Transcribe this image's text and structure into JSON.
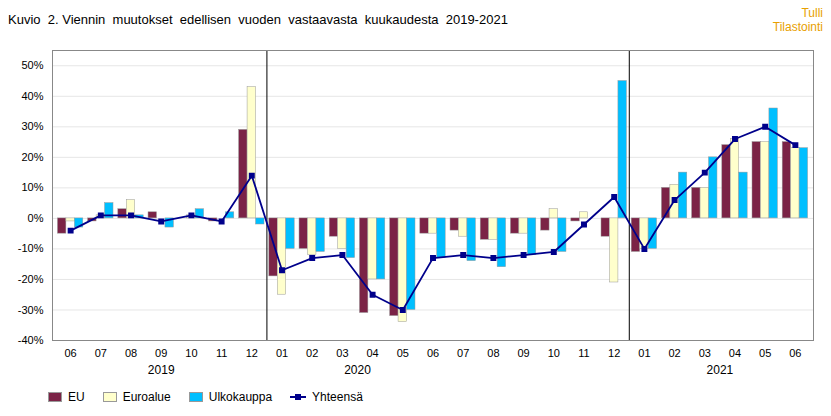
{
  "chart_data": {
    "type": "bar",
    "title": "Kuvio  2. Viennin  muutokset  edellisen  vuoden  vastaavasta  kuukaudesta  2019-2021",
    "categories": [
      "06",
      "07",
      "08",
      "09",
      "10",
      "11",
      "12",
      "01",
      "02",
      "03",
      "04",
      "05",
      "06",
      "07",
      "08",
      "09",
      "10",
      "11",
      "12",
      "01",
      "02",
      "03",
      "04",
      "05",
      "06"
    ],
    "series": [
      {
        "name": "EU",
        "color": "#7b2346",
        "type": "bar",
        "values": [
          -5,
          -1,
          3,
          2,
          0,
          -1,
          29,
          -19,
          -10,
          -6,
          -31,
          -32,
          -5,
          -4,
          -7,
          -5,
          -4,
          -1,
          -6,
          -11,
          10,
          10,
          24,
          25,
          25
        ]
      },
      {
        "name": "Euroalue",
        "color": "#ffffcc",
        "type": "bar",
        "values": [
          -1,
          1,
          6,
          0,
          1,
          0,
          43,
          -25,
          -12,
          -10,
          -20,
          -34,
          -5,
          -6,
          -7,
          -5,
          3,
          2,
          -21,
          -10,
          11,
          10,
          26,
          25,
          23
        ]
      },
      {
        "name": "Ulkokauppa",
        "color": "#00bfff",
        "type": "bar",
        "values": [
          -3,
          5,
          1,
          -3,
          3,
          2,
          -2,
          -10,
          -11,
          -13,
          -20,
          -30,
          -13,
          -14,
          -16,
          -12,
          -11,
          0,
          45,
          -10,
          15,
          20,
          15,
          36,
          23
        ]
      },
      {
        "name": "Yhteensä",
        "color": "#00008b",
        "type": "line",
        "marker": "square",
        "values": [
          -4,
          1,
          1,
          -1,
          1,
          -1,
          14,
          -17,
          -13,
          -12,
          -25,
          -30,
          -13,
          -12,
          -13,
          -12,
          -11,
          -2,
          7,
          -10,
          6,
          15,
          26,
          30,
          24
        ]
      }
    ],
    "ylim": [
      -40,
      55
    ],
    "yticks": [
      {
        "value": -40,
        "label": "-40%"
      },
      {
        "value": -30,
        "label": "-30%"
      },
      {
        "value": -20,
        "label": "-20%"
      },
      {
        "value": -10,
        "label": "-10%"
      },
      {
        "value": 0,
        "label": "0%"
      },
      {
        "value": 10,
        "label": "10%"
      },
      {
        "value": 20,
        "label": "20%"
      },
      {
        "value": 30,
        "label": "30%"
      },
      {
        "value": 40,
        "label": "40%"
      },
      {
        "value": 50,
        "label": "50%"
      }
    ],
    "grid": true,
    "legend": "lower left",
    "annotations": [
      {
        "text": "2019",
        "x": 3
      },
      {
        "text": "2020",
        "x": 9.5
      },
      {
        "text": "2021",
        "x": 21.5
      },
      {
        "type": "line",
        "x": 6.5
      },
      {
        "type": "line",
        "x": 18.5
      },
      {
        "text": "Tulli",
        "color": "#e8a000"
      },
      {
        "text": "Tilastointi",
        "color": "#e8a000"
      }
    ]
  }
}
